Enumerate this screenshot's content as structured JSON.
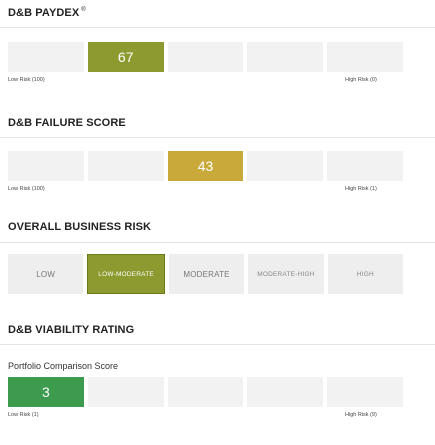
{
  "paydex": {
    "title": "D&B PAYDEX",
    "trademark": "®",
    "score": "67",
    "low_label": "Low Risk (100)",
    "high_label": "High Risk (0)"
  },
  "failure": {
    "title": "D&B FAILURE SCORE",
    "score": "43",
    "low_label": "Low Risk (100)",
    "high_label": "High Risk (1)"
  },
  "business_risk": {
    "title": "OVERALL BUSINESS RISK",
    "levels": [
      "LOW",
      "LOW-MODERATE",
      "MODERATE",
      "MODERATE-HIGH",
      "HIGH"
    ],
    "selected": "LOW-MODERATE"
  },
  "viability": {
    "title": "D&B VIABILITY RATING",
    "portfolio_label": "Portfolio Comparison Score",
    "score": "3",
    "low_label": "Low Risk (1)",
    "high_label": "High Risk (9)"
  },
  "colors": {
    "paydex": "#8c9a2f",
    "failure": "#c8a93a",
    "risk_selected": "#8c9a2f",
    "viability": "#3c9b4d",
    "empty_cell": "#f2f2f2"
  }
}
